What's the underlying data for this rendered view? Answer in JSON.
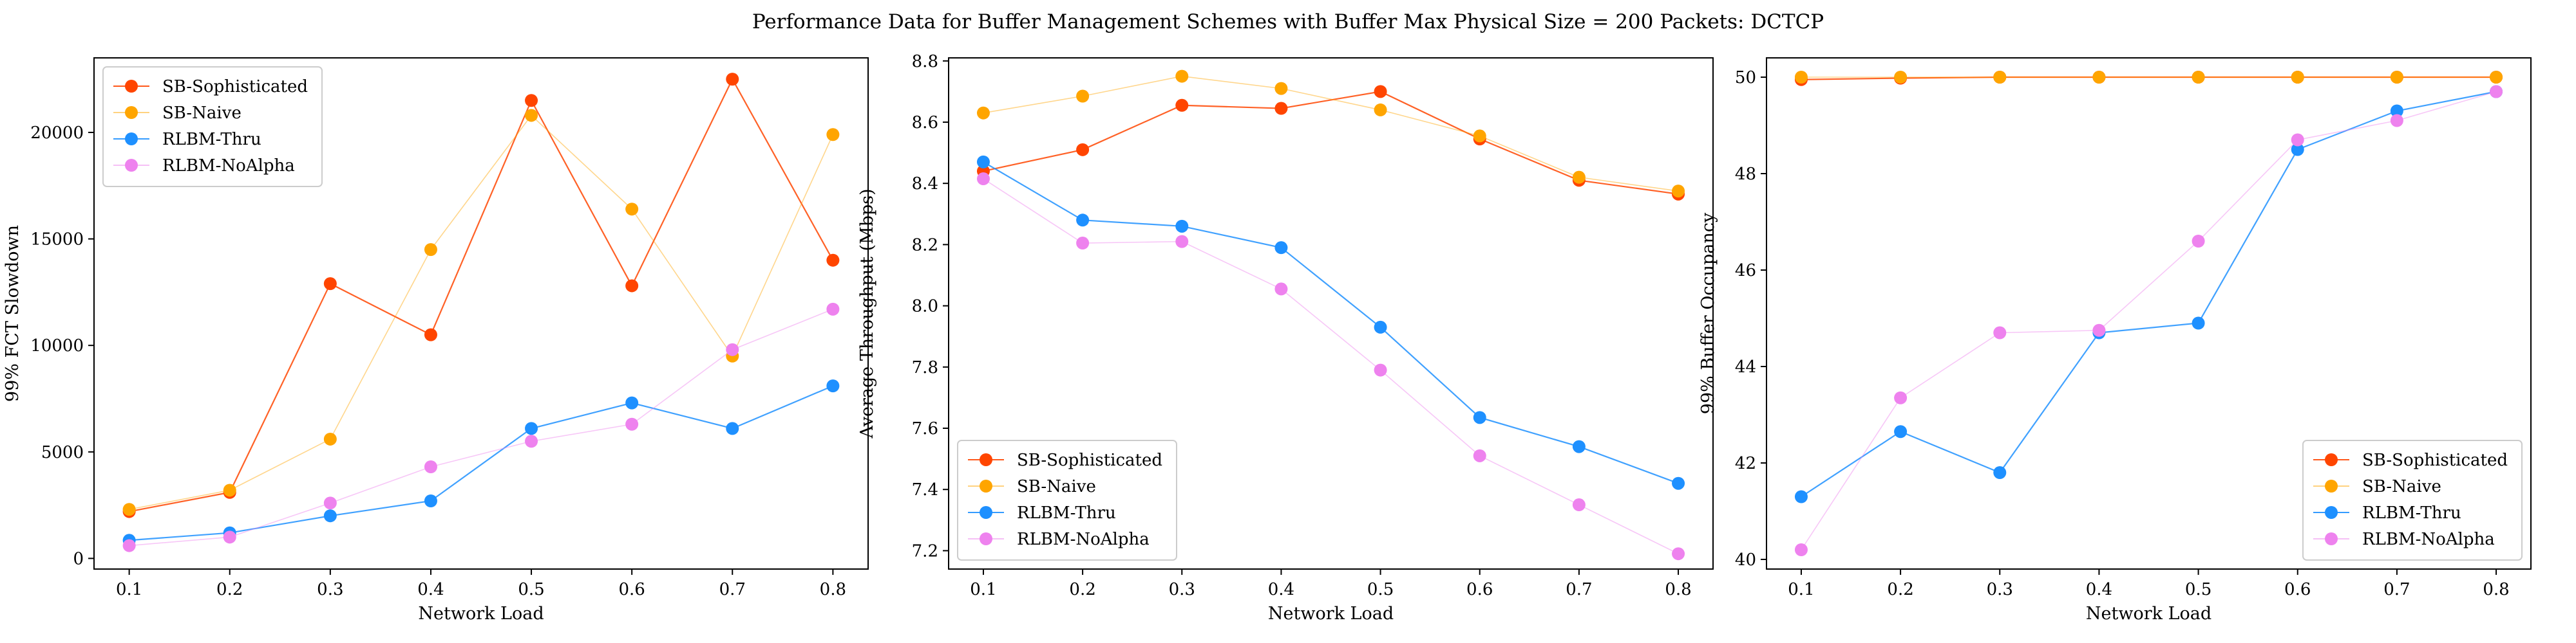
{
  "figure": {
    "suptitle": "Performance Data for Buffer Management Schemes with Buffer Max Physical Size = 200 Packets: DCTCP"
  },
  "colors": {
    "SB-Sophisticated": "#ff4500",
    "SB-Naive": "#ffa500",
    "RLBM-Thru": "#1e90ff",
    "RLBM-NoAlpha": "#ee82ee"
  },
  "chart_data": [
    {
      "type": "line",
      "title": "",
      "xlabel": "Network Load",
      "ylabel": "99% FCT Slowdown",
      "x": [
        0.1,
        0.2,
        0.3,
        0.4,
        0.5,
        0.6,
        0.7,
        0.8
      ],
      "xticks": [
        "0.1",
        "0.2",
        "0.3",
        "0.4",
        "0.5",
        "0.6",
        "0.7",
        "0.8"
      ],
      "xlim": [
        0.065,
        0.835
      ],
      "ylim": [
        -500,
        23500
      ],
      "yticks": [
        0,
        5000,
        10000,
        15000,
        20000
      ],
      "ytick_labels": [
        "0",
        "5000",
        "10000",
        "15000",
        "20000"
      ],
      "legend": "top-left",
      "grid": false,
      "series": [
        {
          "name": "SB-Sophisticated",
          "values": [
            2200,
            3100,
            12900,
            10500,
            21500,
            12800,
            22500,
            14000
          ]
        },
        {
          "name": "SB-Naive",
          "values": [
            2300,
            3200,
            5600,
            14500,
            20800,
            16400,
            9500,
            19900
          ]
        },
        {
          "name": "RLBM-Thru",
          "values": [
            850,
            1200,
            2000,
            2700,
            6100,
            7300,
            6100,
            8100
          ]
        },
        {
          "name": "RLBM-NoAlpha",
          "values": [
            600,
            1000,
            2600,
            4300,
            5500,
            6300,
            9800,
            11700
          ]
        }
      ]
    },
    {
      "type": "line",
      "title": "",
      "xlabel": "Network Load",
      "ylabel": "Average Throughput (Mbps)",
      "x": [
        0.1,
        0.2,
        0.3,
        0.4,
        0.5,
        0.6,
        0.7,
        0.8
      ],
      "xticks": [
        "0.1",
        "0.2",
        "0.3",
        "0.4",
        "0.5",
        "0.6",
        "0.7",
        "0.8"
      ],
      "xlim": [
        0.065,
        0.835
      ],
      "ylim": [
        7.14,
        8.81
      ],
      "yticks": [
        7.2,
        7.4,
        7.6,
        7.8,
        8.0,
        8.2,
        8.4,
        8.6,
        8.8
      ],
      "ytick_labels": [
        "7.2",
        "7.4",
        "7.6",
        "7.8",
        "8.0",
        "8.2",
        "8.4",
        "8.6",
        "8.8"
      ],
      "legend": "bottom-left",
      "grid": false,
      "series": [
        {
          "name": "SB-Sophisticated",
          "values": [
            8.44,
            8.51,
            8.655,
            8.645,
            8.7,
            8.545,
            8.41,
            8.365
          ]
        },
        {
          "name": "SB-Naive",
          "values": [
            8.63,
            8.685,
            8.75,
            8.71,
            8.64,
            8.555,
            8.42,
            8.375
          ]
        },
        {
          "name": "RLBM-Thru",
          "values": [
            8.47,
            8.28,
            8.26,
            8.19,
            7.93,
            7.635,
            7.54,
            7.42
          ]
        },
        {
          "name": "RLBM-NoAlpha",
          "values": [
            8.415,
            8.205,
            8.21,
            8.055,
            7.79,
            7.51,
            7.35,
            7.19
          ]
        }
      ]
    },
    {
      "type": "line",
      "title": "",
      "xlabel": "Network Load",
      "ylabel": "99% Buffer Occupancy",
      "x": [
        0.1,
        0.2,
        0.3,
        0.4,
        0.5,
        0.6,
        0.7,
        0.8
      ],
      "xticks": [
        "0.1",
        "0.2",
        "0.3",
        "0.4",
        "0.5",
        "0.6",
        "0.7",
        "0.8"
      ],
      "xlim": [
        0.065,
        0.835
      ],
      "ylim": [
        39.8,
        50.4
      ],
      "yticks": [
        40,
        42,
        44,
        46,
        48,
        50
      ],
      "ytick_labels": [
        "40",
        "42",
        "44",
        "46",
        "48",
        "50"
      ],
      "legend": "bottom-right",
      "grid": false,
      "series": [
        {
          "name": "SB-Sophisticated",
          "values": [
            49.95,
            49.98,
            50.0,
            50.0,
            50.0,
            50.0,
            50.0,
            50.0
          ]
        },
        {
          "name": "SB-Naive",
          "values": [
            50.0,
            50.0,
            50.0,
            50.0,
            50.0,
            50.0,
            50.0,
            50.0
          ]
        },
        {
          "name": "RLBM-Thru",
          "values": [
            41.3,
            42.65,
            41.8,
            44.7,
            44.9,
            48.5,
            49.3,
            49.7
          ]
        },
        {
          "name": "RLBM-NoAlpha",
          "values": [
            40.2,
            43.35,
            44.7,
            44.75,
            46.6,
            48.7,
            49.1,
            49.7
          ]
        }
      ]
    }
  ]
}
